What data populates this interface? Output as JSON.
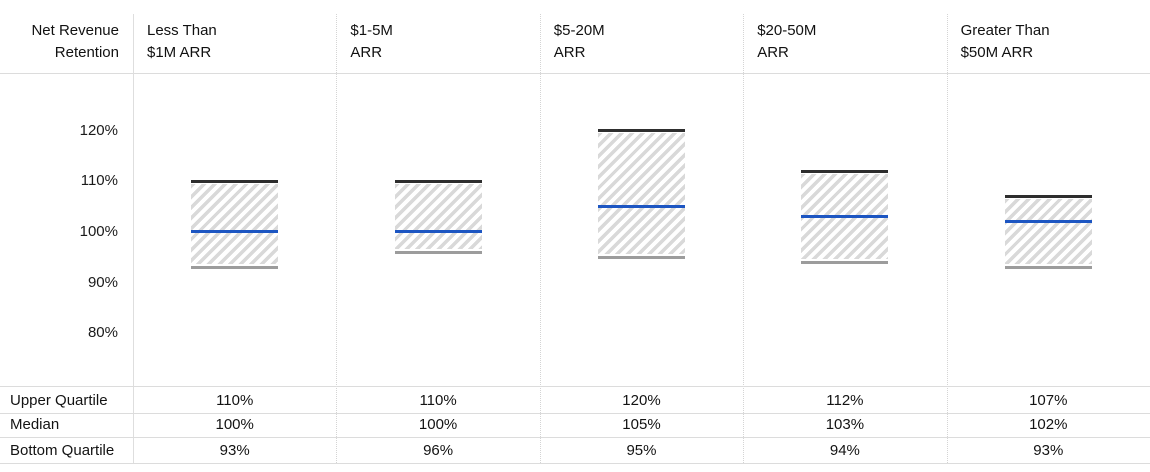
{
  "title": {
    "line1": "Net Revenue",
    "line2": "Retention"
  },
  "colors": {
    "upper_quartile_line": "#2e2e2e",
    "median_line": "#1d56c2",
    "bottom_quartile_line": "#9c9c9c",
    "hatch_stripe": "#d9d9d9",
    "grid_line": "#dcdcdc"
  },
  "chart_data": {
    "type": "box-range",
    "title": "Net Revenue Retention",
    "categories": [
      {
        "line1": "Less Than",
        "line2": "$1M ARR"
      },
      {
        "line1": "$1-5M",
        "line2": "ARR"
      },
      {
        "line1": "$5-20M",
        "line2": "ARR"
      },
      {
        "line1": "$20-50M",
        "line2": "ARR"
      },
      {
        "line1": "Greater Than",
        "line2": "$50M ARR"
      }
    ],
    "series": [
      {
        "name": "Upper Quartile",
        "values": [
          110,
          110,
          120,
          112,
          107
        ]
      },
      {
        "name": "Median",
        "values": [
          100,
          100,
          105,
          103,
          102
        ]
      },
      {
        "name": "Bottom Quartile",
        "values": [
          93,
          96,
          95,
          94,
          93
        ]
      }
    ],
    "yticks": [
      {
        "label": "120%",
        "value": 120
      },
      {
        "label": "110%",
        "value": 110
      },
      {
        "label": "100%",
        "value": 100
      },
      {
        "label": "90%",
        "value": 90
      },
      {
        "label": "80%",
        "value": 80
      }
    ],
    "unit": "%",
    "ylim": [
      70,
      131
    ],
    "grid": "dotted vertical column separators only",
    "legend": "none"
  },
  "table": {
    "rows": [
      {
        "label": "Upper Quartile",
        "values": [
          "110%",
          "110%",
          "120%",
          "112%",
          "107%"
        ]
      },
      {
        "label": "Median",
        "values": [
          "100%",
          "100%",
          "105%",
          "103%",
          "102%"
        ]
      },
      {
        "label": "Bottom Quartile",
        "values": [
          "93%",
          "96%",
          "95%",
          "94%",
          "93%"
        ]
      }
    ]
  }
}
